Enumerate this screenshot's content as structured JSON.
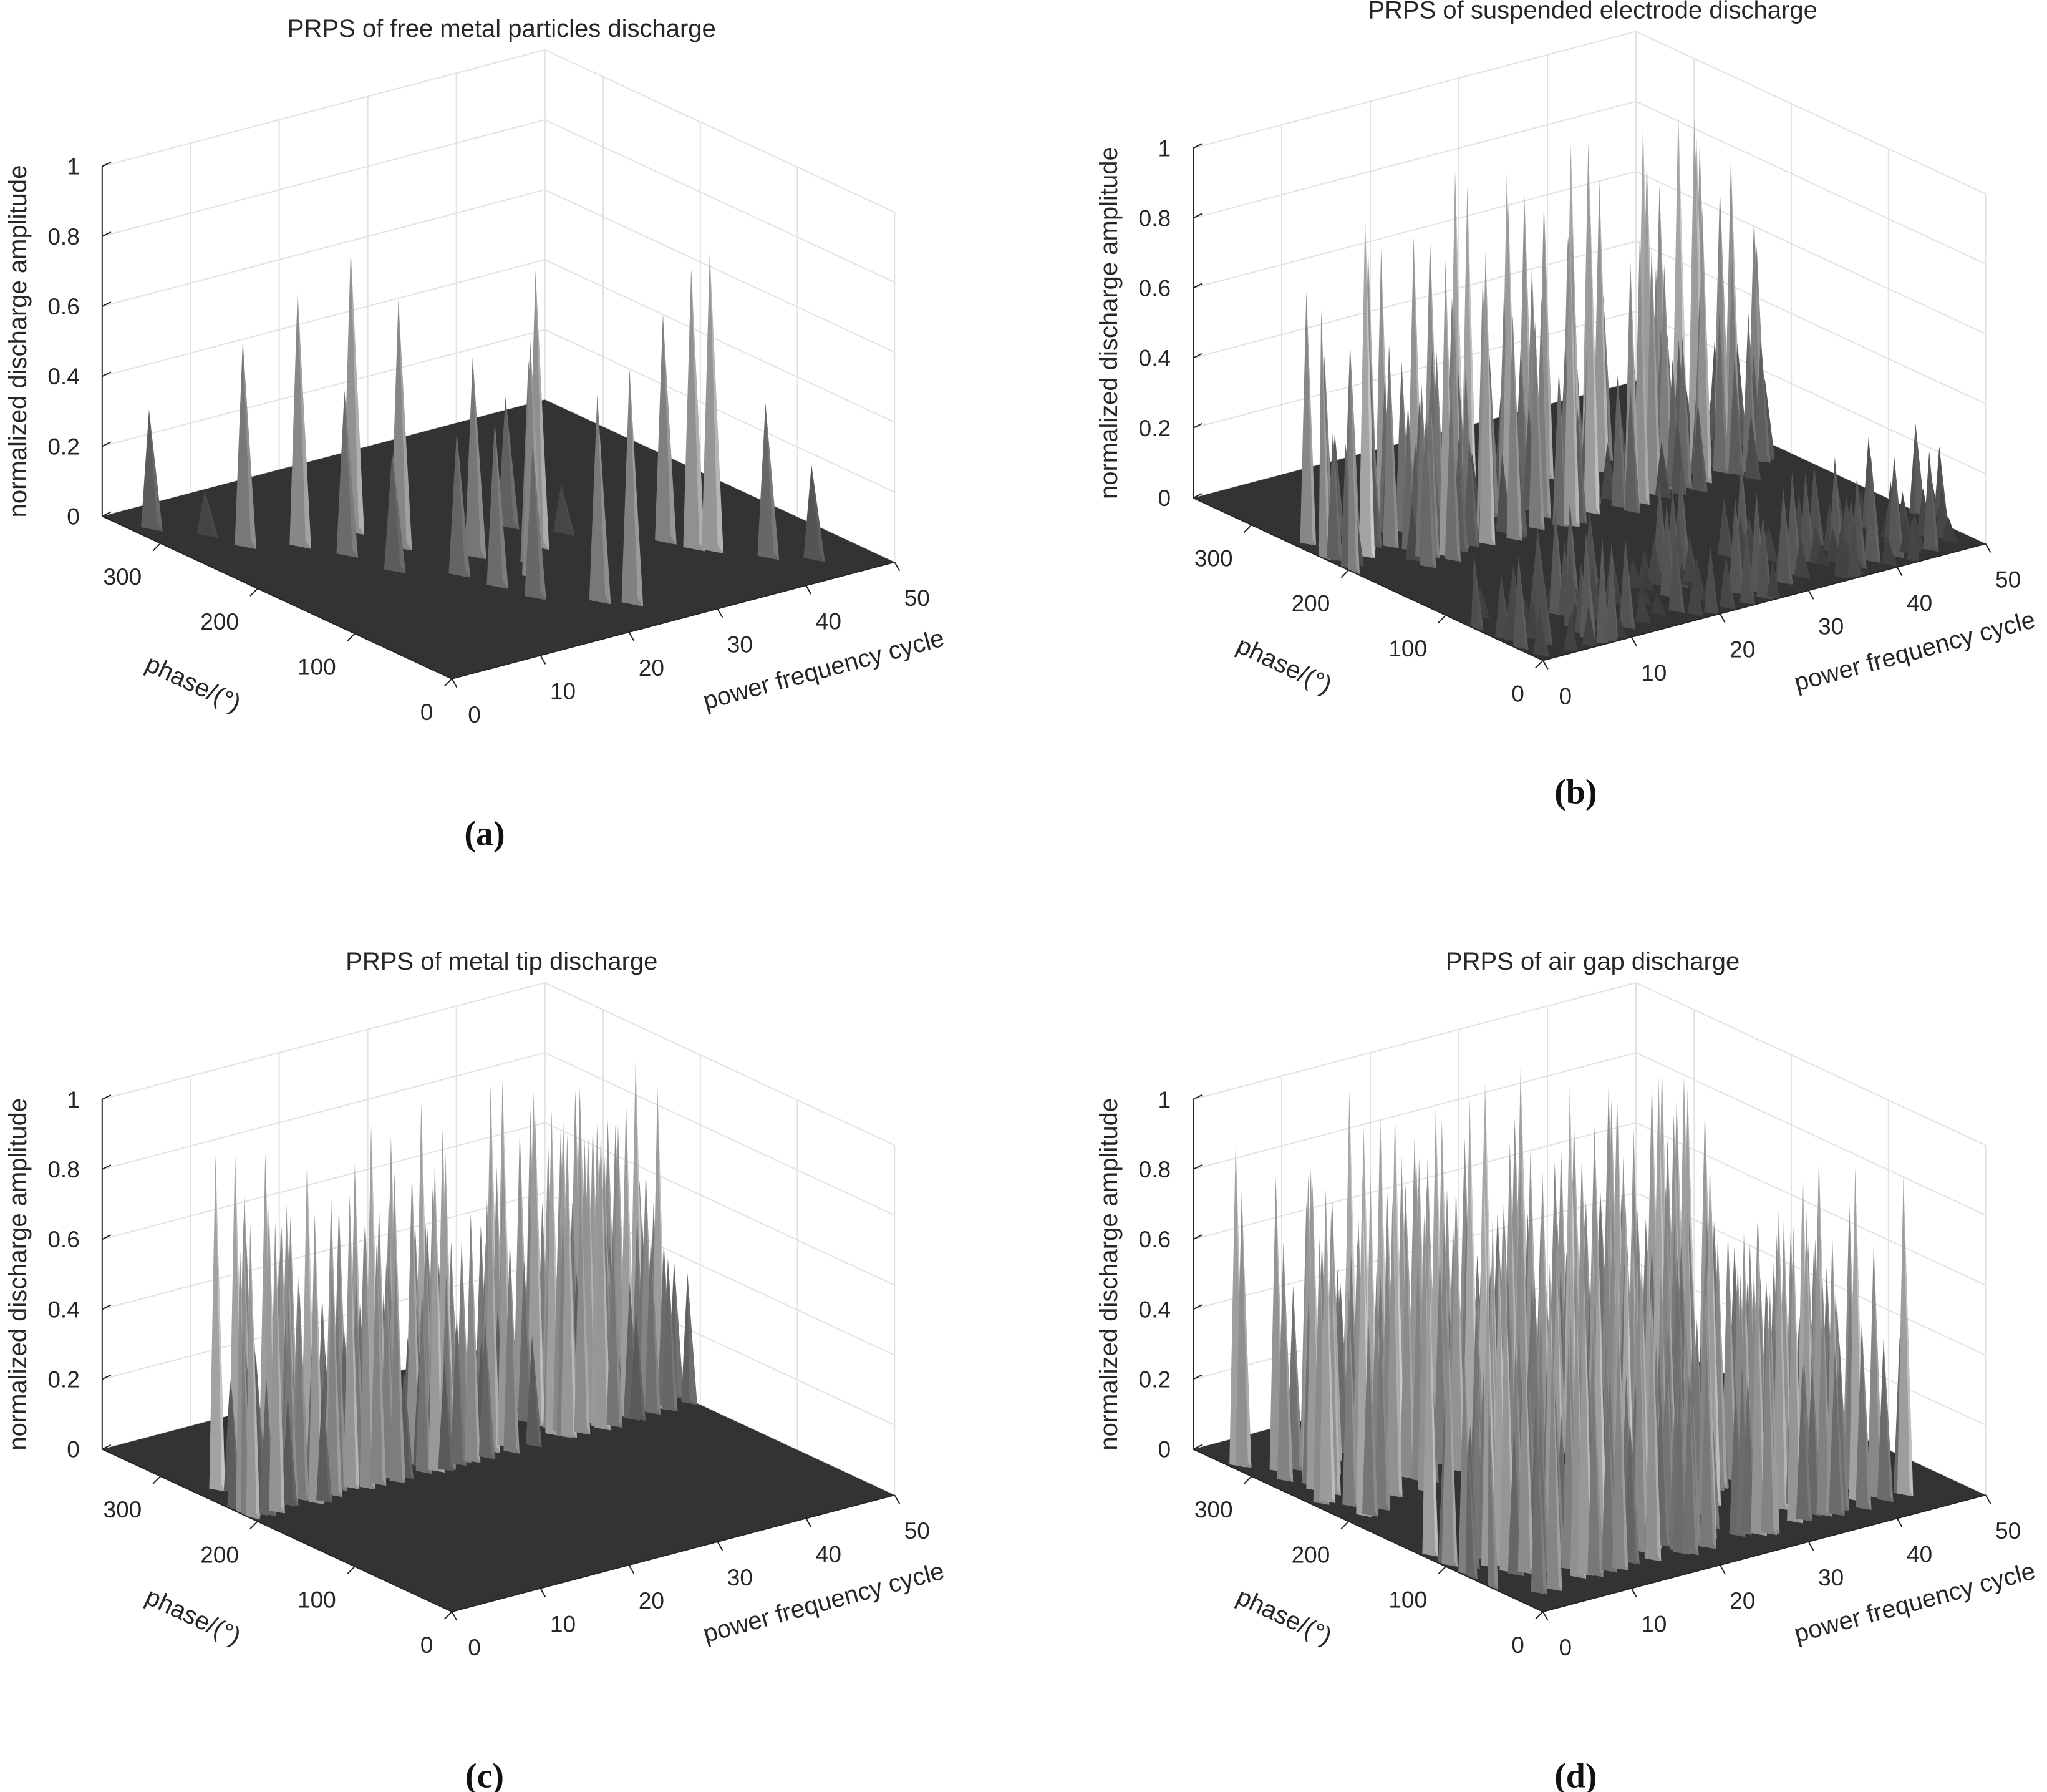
{
  "figure": {
    "captions": [
      "(a)",
      "(b)",
      "(c)",
      "(d)"
    ]
  },
  "chart_data": [
    {
      "type": "surface",
      "title": "PRPS of free metal particles discharge",
      "xlabel": "power frequency cycle",
      "ylabel": "phase/(°)",
      "zlabel": "normalized discharge amplitude",
      "xlim": [
        0,
        50
      ],
      "ylim": [
        0,
        360
      ],
      "zlim": [
        0,
        1
      ],
      "xticks": [
        "0",
        "10",
        "20",
        "30",
        "40",
        "50"
      ],
      "yticks": [
        "0",
        "100",
        "200",
        "300"
      ],
      "zticks": [
        "0",
        "0.2",
        "0.4",
        "0.6",
        "0.8",
        "1"
      ],
      "peaks": [
        {
          "cycle": 2,
          "phase": 330,
          "amplitude": 0.33
        },
        {
          "cycle": 5,
          "phase": 300,
          "amplitude": 0.12
        },
        {
          "cycle": 6,
          "phase": 270,
          "amplitude": 0.58
        },
        {
          "cycle": 10,
          "phase": 250,
          "amplitude": 0.72
        },
        {
          "cycle": 12,
          "phase": 220,
          "amplitude": 0.46
        },
        {
          "cycle": 13,
          "phase": 180,
          "amplitude": 0.33
        },
        {
          "cycle": 16,
          "phase": 250,
          "amplitude": 0.8
        },
        {
          "cycle": 17,
          "phase": 210,
          "amplitude": 0.7
        },
        {
          "cycle": 17,
          "phase": 150,
          "amplitude": 0.4
        },
        {
          "cycle": 18,
          "phase": 120,
          "amplitude": 0.46
        },
        {
          "cycle": 19,
          "phase": 90,
          "amplitude": 0.43
        },
        {
          "cycle": 21,
          "phase": 170,
          "amplitude": 0.56
        },
        {
          "cycle": 22,
          "phase": 120,
          "amplitude": 0.67
        },
        {
          "cycle": 23,
          "phase": 60,
          "amplitude": 0.58
        },
        {
          "cycle": 24,
          "phase": 140,
          "amplitude": 0.57
        },
        {
          "cycle": 25,
          "phase": 45,
          "amplitude": 0.66
        },
        {
          "cycle": 27,
          "phase": 160,
          "amplitude": 0.78
        },
        {
          "cycle": 28,
          "phase": 200,
          "amplitude": 0.36
        },
        {
          "cycle": 31,
          "phase": 170,
          "amplitude": 0.13
        },
        {
          "cycle": 37,
          "phase": 120,
          "amplitude": 0.64
        },
        {
          "cycle": 38,
          "phase": 100,
          "amplitude": 0.79
        },
        {
          "cycle": 39,
          "phase": 90,
          "amplitude": 0.84
        },
        {
          "cycle": 42,
          "phase": 60,
          "amplitude": 0.43
        },
        {
          "cycle": 45,
          "phase": 40,
          "amplitude": 0.26
        }
      ]
    },
    {
      "type": "surface",
      "title": "PRPS of suspended electrode discharge",
      "xlabel": "power frequency cycle",
      "ylabel": "phase/(°)",
      "zlabel": "normalized discharge amplitude",
      "xlim": [
        0,
        50
      ],
      "ylim": [
        0,
        360
      ],
      "zlim": [
        0,
        1
      ],
      "xticks": [
        "0",
        "10",
        "20",
        "30",
        "40",
        "50"
      ],
      "yticks": [
        "0",
        "100",
        "200",
        "300"
      ],
      "zticks": [
        "0",
        "0.2",
        "0.4",
        "0.6",
        "0.8",
        "1"
      ],
      "description": "Two dense clusters of discharge: large pulses reaching up to ~1.0 in the 180-270° phase band across all cycles, and smaller pulses (~0.1-0.3) in the 0-90° band."
    },
    {
      "type": "surface",
      "title": "PRPS of metal tip discharge",
      "xlabel": "power frequency cycle",
      "ylabel": "phase/(°)",
      "zlabel": "normalized discharge amplitude",
      "xlim": [
        0,
        50
      ],
      "ylim": [
        0,
        360
      ],
      "zlim": [
        0,
        1
      ],
      "xticks": [
        "0",
        "10",
        "20",
        "30",
        "40",
        "50"
      ],
      "yticks": [
        "0",
        "100",
        "200",
        "300"
      ],
      "zticks": [
        "0",
        "0.2",
        "0.4",
        "0.6",
        "0.8",
        "1"
      ],
      "description": "Single dense band of discharge around 210-270° phase across all cycles, amplitudes mostly 0.5-0.9 with peaks near 0.95."
    },
    {
      "type": "surface",
      "title": "PRPS of air gap discharge",
      "xlabel": "power frequency cycle",
      "ylabel": "phase/(°)",
      "zlabel": "normalized discharge amplitude",
      "xlim": [
        0,
        50
      ],
      "ylim": [
        0,
        360
      ],
      "zlim": [
        0,
        1
      ],
      "xticks": [
        "0",
        "10",
        "20",
        "30",
        "40",
        "50"
      ],
      "yticks": [
        "0",
        "100",
        "200",
        "300"
      ],
      "zticks": [
        "0",
        "0.2",
        "0.4",
        "0.6",
        "0.8",
        "1"
      ],
      "description": "Two wide continuous bands of discharge (approx. 30-130° and 200-330° phase) across cycles 0-45, amplitudes mostly 0.5-0.8 with peaks near 1.0."
    }
  ]
}
